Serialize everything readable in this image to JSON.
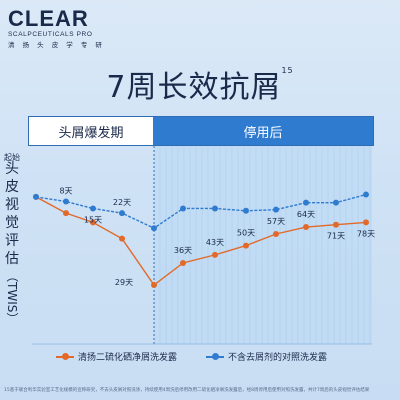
{
  "brand": {
    "name": "CLEAR",
    "subtitle": "SCALPCEUTICALS PRO",
    "tagline": "清 扬 头 皮 学 专 研"
  },
  "headline": {
    "text": "7周长效抗屑",
    "footnote_mark": "15"
  },
  "phase_bar": {
    "left_label": "头屑爆发期",
    "right_label": "停用后"
  },
  "y_axis": {
    "label_cn": [
      "头",
      "皮",
      "视",
      "觉",
      "评",
      "估"
    ],
    "label_paren": "（TWIS）"
  },
  "start_label": "起始",
  "colors": {
    "orange": "#e2692a",
    "blue": "#2f7bd0",
    "navy": "#1a2a4a",
    "divider": "#2e6db4"
  },
  "chart_data": {
    "type": "line",
    "series": [
      {
        "name": "清扬二硫化硒净屑洗发露",
        "color": "#e2692a",
        "points": [
          {
            "x": 0,
            "y": 82,
            "label": ""
          },
          {
            "x": 1,
            "y": 68,
            "label": ""
          },
          {
            "x": 2,
            "y": 60,
            "label": ""
          },
          {
            "x": 3,
            "y": 46,
            "label": ""
          },
          {
            "x": 4,
            "y": 6,
            "label": "29天"
          },
          {
            "x": 5,
            "y": 25,
            "label": "36天"
          },
          {
            "x": 6,
            "y": 32,
            "label": "43天"
          },
          {
            "x": 7,
            "y": 40,
            "label": "50天"
          },
          {
            "x": 8,
            "y": 50,
            "label": "57天"
          },
          {
            "x": 9,
            "y": 56,
            "label": "64天"
          },
          {
            "x": 10,
            "y": 58,
            "label": "71天"
          },
          {
            "x": 11,
            "y": 60,
            "label": "78天"
          }
        ]
      },
      {
        "name": "不含去屑剂的对照洗发露",
        "color": "#2f7bd0",
        "points": [
          {
            "x": 0,
            "y": 82,
            "label": ""
          },
          {
            "x": 1,
            "y": 78,
            "label": "8天"
          },
          {
            "x": 2,
            "y": 72,
            "label": "15天"
          },
          {
            "x": 3,
            "y": 68,
            "label": "22天"
          },
          {
            "x": 4,
            "y": 55,
            "label": ""
          },
          {
            "x": 5,
            "y": 72,
            "label": ""
          },
          {
            "x": 6,
            "y": 72,
            "label": ""
          },
          {
            "x": 7,
            "y": 70,
            "label": ""
          },
          {
            "x": 8,
            "y": 71,
            "label": ""
          },
          {
            "x": 9,
            "y": 77,
            "label": ""
          },
          {
            "x": 10,
            "y": 77,
            "label": ""
          },
          {
            "x": 11,
            "y": 84,
            "label": ""
          }
        ]
      }
    ],
    "ylim": [
      0,
      100
    ],
    "divider_x": 4
  },
  "footnote": "15基于联合利华实验室工艺化规模的宣称研究，不去头皮屑对照洗涤，持续使用4周洗后停用改用二硫化硒净屑洗发露后，经8周停用后使用对照洗发露，共计7周后的头皮视觉评估结果"
}
